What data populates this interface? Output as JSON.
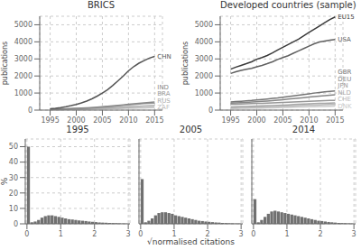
{
  "chart_data": [
    {
      "type": "line",
      "title": "BRICS",
      "ylabel": "publications",
      "x": [
        1995,
        1996,
        1997,
        1998,
        1999,
        2000,
        2001,
        2002,
        2003,
        2004,
        2005,
        2006,
        2007,
        2008,
        2009,
        2010,
        2011,
        2012,
        2013,
        2014,
        2015
      ],
      "series": [
        {
          "name": "ZAF",
          "color": "#bbbbbb",
          "values": [
            25,
            28,
            31,
            34,
            37,
            41,
            46,
            51,
            57,
            63,
            70,
            78,
            86,
            95,
            104,
            113,
            122,
            130,
            138,
            146,
            154
          ]
        },
        {
          "name": "RUS",
          "color": "#aaaaaa",
          "values": [
            38,
            42,
            47,
            52,
            58,
            65,
            73,
            82,
            92,
            103,
            116,
            130,
            145,
            162,
            178,
            196,
            212,
            228,
            242,
            256,
            268
          ]
        },
        {
          "name": "BRA",
          "color": "#9a9a9a",
          "values": [
            45,
            52,
            59,
            67,
            76,
            86,
            98,
            112,
            128,
            148,
            168,
            192,
            218,
            248,
            278,
            308,
            335,
            358,
            378,
            398,
            415
          ]
        },
        {
          "name": "IND",
          "color": "#888888",
          "values": [
            60,
            68,
            76,
            85,
            95,
            108,
            120,
            135,
            150,
            170,
            195,
            220,
            248,
            275,
            305,
            338,
            368,
            395,
            420,
            445,
            470
          ]
        },
        {
          "name": "CHN",
          "color": "#555555",
          "values": [
            80,
            110,
            150,
            200,
            260,
            330,
            420,
            530,
            660,
            820,
            1000,
            1200,
            1450,
            1720,
            2000,
            2300,
            2550,
            2750,
            2900,
            3050,
            3150
          ]
        }
      ],
      "xlim": [
        1993,
        2016.5
      ],
      "xticks": [
        1995,
        2000,
        2005,
        2010,
        2015
      ],
      "ylim": [
        0,
        5500
      ],
      "yticks": [
        0,
        1000,
        2000,
        3000,
        4000,
        5000
      ],
      "grid": true
    },
    {
      "type": "line",
      "title": "Developed countries (sample)",
      "ylabel": "publications",
      "x": [
        1995,
        1996,
        1997,
        1998,
        1999,
        2000,
        2001,
        2002,
        2003,
        2004,
        2005,
        2006,
        2007,
        2008,
        2009,
        2010,
        2011,
        2012,
        2013,
        2014,
        2015
      ],
      "series": [
        {
          "name": "DNK",
          "color": "#cacaca",
          "values": [
            95,
            99,
            103,
            108,
            113,
            119,
            125,
            131,
            138,
            145,
            153,
            161,
            170,
            179,
            187,
            195,
            203,
            211,
            218,
            225,
            232
          ]
        },
        {
          "name": "CHE",
          "color": "#b9b9b9",
          "values": [
            145,
            151,
            158,
            165,
            172,
            180,
            188,
            197,
            207,
            217,
            228,
            239,
            251,
            263,
            274,
            285,
            296,
            306,
            315,
            324,
            333
          ]
        },
        {
          "name": "NLD",
          "color": "#a8a8a8",
          "values": [
            190,
            198,
            207,
            216,
            225,
            236,
            247,
            258,
            270,
            283,
            296,
            310,
            324,
            338,
            352,
            366,
            379,
            391,
            402,
            413,
            424
          ]
        },
        {
          "name": "JPN",
          "color": "#979797",
          "values": [
            340,
            350,
            360,
            370,
            380,
            390,
            400,
            412,
            425,
            438,
            452,
            466,
            480,
            494,
            507,
            520,
            532,
            544,
            554,
            564,
            574
          ]
        },
        {
          "name": "DEU",
          "color": "#868686",
          "values": [
            410,
            425,
            440,
            456,
            472,
            492,
            512,
            534,
            558,
            582,
            612,
            642,
            672,
            702,
            732,
            762,
            792,
            820,
            845,
            870,
            895
          ]
        },
        {
          "name": "GBR",
          "color": "#757575",
          "values": [
            480,
            500,
            522,
            545,
            568,
            598,
            622,
            652,
            685,
            718,
            758,
            798,
            838,
            878,
            918,
            958,
            998,
            1035,
            1065,
            1095,
            1125
          ]
        },
        {
          "name": "USA",
          "color": "#606060",
          "values": [
            2150,
            2250,
            2330,
            2390,
            2450,
            2540,
            2620,
            2720,
            2830,
            2970,
            3080,
            3190,
            3330,
            3470,
            3610,
            3750,
            3890,
            3990,
            4050,
            4100,
            4140
          ]
        },
        {
          "name": "EU15",
          "color": "#3a3a3a",
          "values": [
            2400,
            2520,
            2620,
            2720,
            2830,
            2980,
            3080,
            3200,
            3350,
            3520,
            3680,
            3840,
            4000,
            4160,
            4360,
            4550,
            4740,
            4930,
            5120,
            5310,
            5460
          ]
        }
      ],
      "xlim": [
        1993,
        2016.5
      ],
      "xticks": [
        1995,
        2000,
        2005,
        2010,
        2015
      ],
      "ylim": [
        0,
        5500
      ],
      "yticks": [
        0,
        1000,
        2000,
        3000,
        4000,
        5000
      ],
      "grid": true
    },
    {
      "type": "bar",
      "title": "1995",
      "ylabel": "%",
      "x": [
        0.05,
        0.15,
        0.25,
        0.35,
        0.45,
        0.55,
        0.65,
        0.75,
        0.85,
        0.95,
        1.05,
        1.15,
        1.25,
        1.35,
        1.45,
        1.55,
        1.65,
        1.75,
        1.85,
        1.95,
        2.05,
        2.15,
        2.25,
        2.35,
        2.45,
        2.55,
        2.65,
        2.75,
        2.85,
        2.95
      ],
      "values": [
        50,
        1.0,
        1.5,
        2.5,
        4.0,
        5.0,
        5.5,
        5.5,
        5.0,
        4.5,
        4.0,
        3.5,
        3.0,
        2.8,
        2.5,
        2.2,
        2.0,
        1.8,
        1.5,
        1.3,
        1.1,
        0.9,
        0.8,
        0.7,
        0.6,
        0.5,
        0.4,
        0.3,
        0.2,
        0.2
      ],
      "color": "#707070",
      "xlim": [
        -0.05,
        3.05
      ],
      "xticks": [
        0,
        1,
        2,
        3
      ],
      "ylim": [
        0,
        55
      ],
      "yticks": [
        0,
        10,
        20,
        30,
        40,
        50
      ],
      "grid": true
    },
    {
      "type": "bar",
      "title": "2005",
      "xlabel": "√normalised citations",
      "x": [
        0.05,
        0.15,
        0.25,
        0.35,
        0.45,
        0.55,
        0.65,
        0.75,
        0.85,
        0.95,
        1.05,
        1.15,
        1.25,
        1.35,
        1.45,
        1.55,
        1.65,
        1.75,
        1.85,
        1.95,
        2.05,
        2.15,
        2.25,
        2.35,
        2.45,
        2.55,
        2.65,
        2.75,
        2.85,
        2.95
      ],
      "values": [
        29,
        1.0,
        2.0,
        3.5,
        5.5,
        7.0,
        7.5,
        7.5,
        7.0,
        6.5,
        5.5,
        5.0,
        4.5,
        4.0,
        3.5,
        3.0,
        2.5,
        2.0,
        1.8,
        1.5,
        1.3,
        1.1,
        0.9,
        0.8,
        0.6,
        0.5,
        0.4,
        0.3,
        0.2,
        0.2
      ],
      "color": "#707070",
      "xlim": [
        -0.05,
        3.05
      ],
      "xticks": [
        0,
        1,
        2,
        3
      ],
      "ylim": [
        0,
        55
      ],
      "yticks": [
        0,
        10,
        20,
        30,
        40,
        50
      ],
      "grid": true,
      "tick_labels": "x"
    },
    {
      "type": "bar",
      "title": "2014",
      "x": [
        0.05,
        0.15,
        0.25,
        0.35,
        0.45,
        0.55,
        0.65,
        0.75,
        0.85,
        0.95,
        1.05,
        1.15,
        1.25,
        1.35,
        1.45,
        1.55,
        1.65,
        1.75,
        1.85,
        1.95,
        2.05,
        2.15,
        2.25,
        2.35,
        2.45,
        2.55,
        2.65,
        2.75,
        2.85,
        2.95
      ],
      "values": [
        16,
        1.0,
        2.5,
        4.5,
        6.5,
        8.0,
        8.5,
        8.0,
        7.5,
        7.0,
        6.5,
        6.0,
        5.5,
        5.0,
        4.5,
        4.0,
        3.5,
        3.0,
        2.5,
        2.0,
        1.8,
        1.5,
        1.2,
        1.0,
        0.8,
        0.6,
        0.5,
        0.4,
        0.3,
        0.2
      ],
      "color": "#707070",
      "xlim": [
        -0.05,
        3.05
      ],
      "xticks": [
        0,
        1,
        2,
        3
      ],
      "ylim": [
        0,
        55
      ],
      "yticks": [
        0,
        10,
        20,
        30,
        40,
        50
      ],
      "grid": true,
      "tick_labels": "x"
    }
  ]
}
